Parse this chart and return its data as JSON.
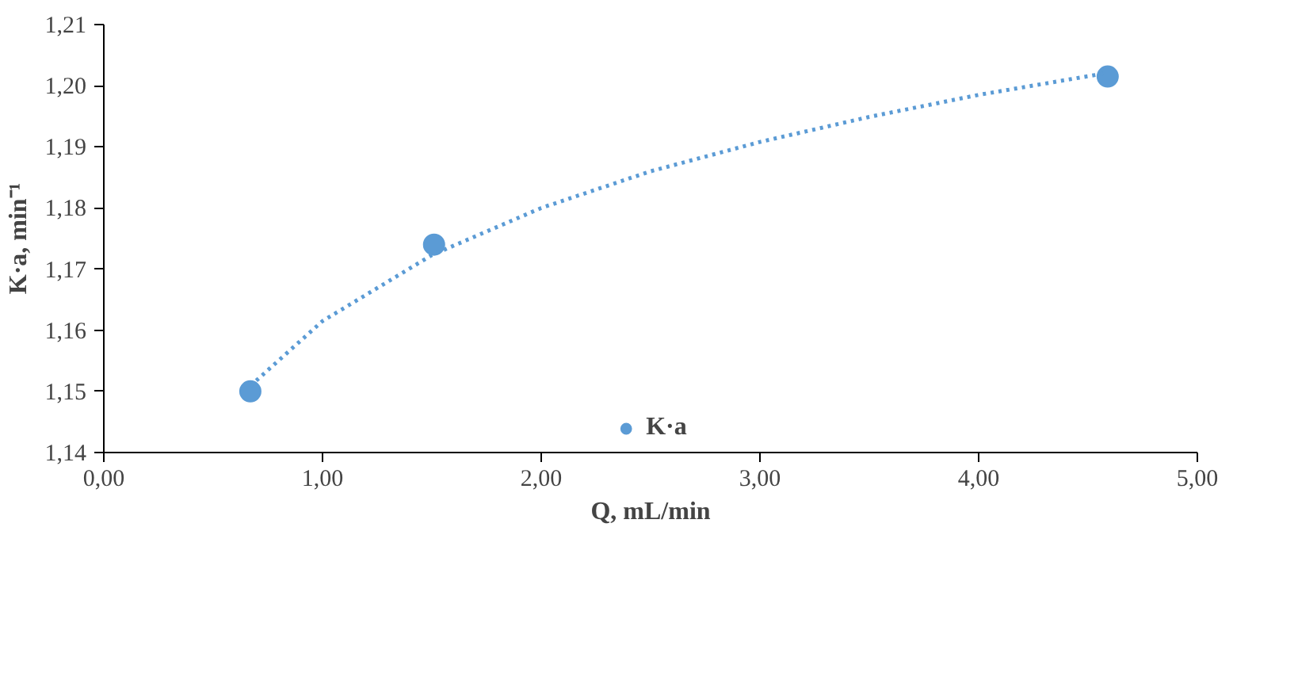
{
  "chart_data": {
    "type": "scatter",
    "xlabel": "Q, mL/min",
    "ylabel": "K·a, min⁻¹",
    "series": [
      {
        "name": "K·a",
        "color": "#5b9bd5",
        "x": [
          0.67,
          1.51,
          4.59
        ],
        "values": [
          1.15,
          1.174,
          1.2015
        ],
        "marker": "circle"
      },
      {
        "type": "line",
        "color": "#5b9bd5",
        "line_style": "dotted",
        "marker": "none",
        "x": [
          0.67,
          1.0,
          1.5,
          2.0,
          2.5,
          3.0,
          3.5,
          4.0,
          4.59
        ],
        "values": [
          1.1509,
          1.1615,
          1.1723,
          1.18,
          1.186,
          1.1908,
          1.1949,
          1.1985,
          1.2021
        ]
      }
    ],
    "xlim": [
      0,
      5
    ],
    "ylim": [
      1.14,
      1.21
    ],
    "xticks": [
      {
        "value": 0,
        "label": "0,00"
      },
      {
        "value": 1,
        "label": "1,00"
      },
      {
        "value": 2,
        "label": "2,00"
      },
      {
        "value": 3,
        "label": "3,00"
      },
      {
        "value": 4,
        "label": "4,00"
      },
      {
        "value": 5,
        "label": "5,00"
      }
    ],
    "yticks": [
      {
        "value": 1.14,
        "label": "1,14"
      },
      {
        "value": 1.15,
        "label": "1,15"
      },
      {
        "value": 1.16,
        "label": "1,16"
      },
      {
        "value": 1.17,
        "label": "1,17"
      },
      {
        "value": 1.18,
        "label": "1,18"
      },
      {
        "value": 1.19,
        "label": "1,19"
      },
      {
        "value": 1.2,
        "label": "1,20"
      },
      {
        "value": 1.21,
        "label": "1,21"
      }
    ],
    "grid": false,
    "legend": "bottom"
  }
}
